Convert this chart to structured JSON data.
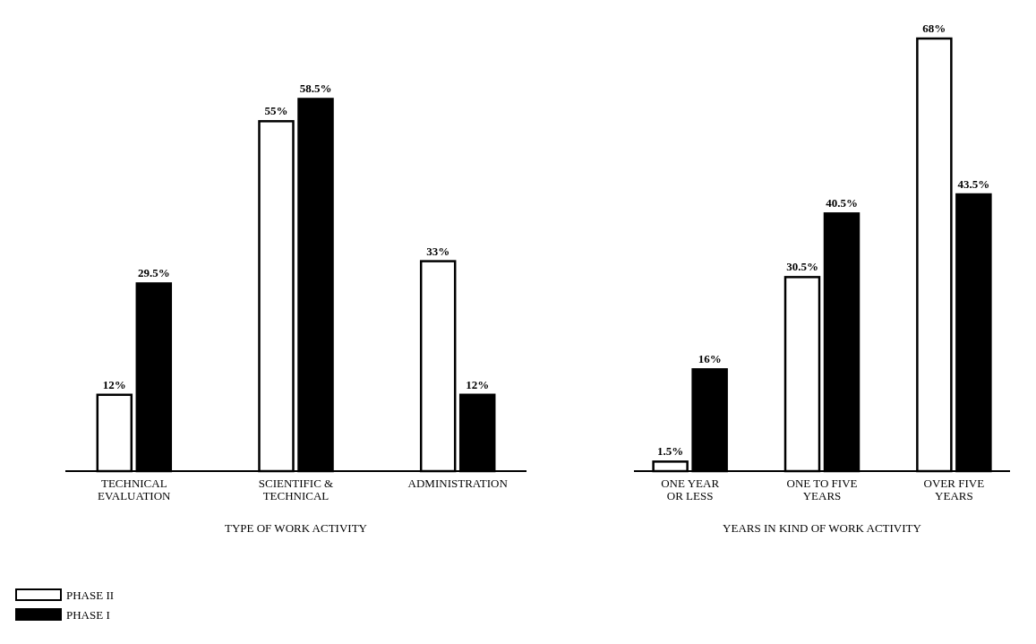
{
  "chart_data": [
    {
      "type": "bar",
      "xlabel": "TYPE OF WORK ACTIVITY",
      "categories": [
        "TECHNICAL\nEVALUATION",
        "SCIENTIFIC &\nTECHNICAL",
        "ADMINISTRATION"
      ],
      "legend": "bottom left",
      "series": [
        {
          "name": "PHASE II",
          "color": "#ffffff",
          "values": [
            12,
            55,
            33
          ],
          "value_labels": [
            "12%",
            "55%",
            "33%"
          ]
        },
        {
          "name": "PHASE I",
          "color": "#000000",
          "values": [
            29.5,
            58.5,
            12
          ],
          "value_labels": [
            "29.5%",
            "58.5%",
            "12%"
          ]
        }
      ]
    },
    {
      "type": "bar",
      "xlabel": "YEARS IN KIND OF WORK ACTIVITY",
      "categories": [
        "ONE YEAR\nOR LESS",
        "ONE TO FIVE\nYEARS",
        "OVER FIVE\nYEARS"
      ],
      "series": [
        {
          "color": "#ffffff",
          "values": [
            1.5,
            30.5,
            68
          ],
          "value_labels": [
            "1.5%",
            "30.5%",
            "68%"
          ]
        },
        {
          "color": "#000000",
          "values": [
            16,
            40.5,
            43.5
          ],
          "value_labels": [
            "16%",
            "40.5%",
            "43.5%"
          ]
        }
      ]
    }
  ]
}
